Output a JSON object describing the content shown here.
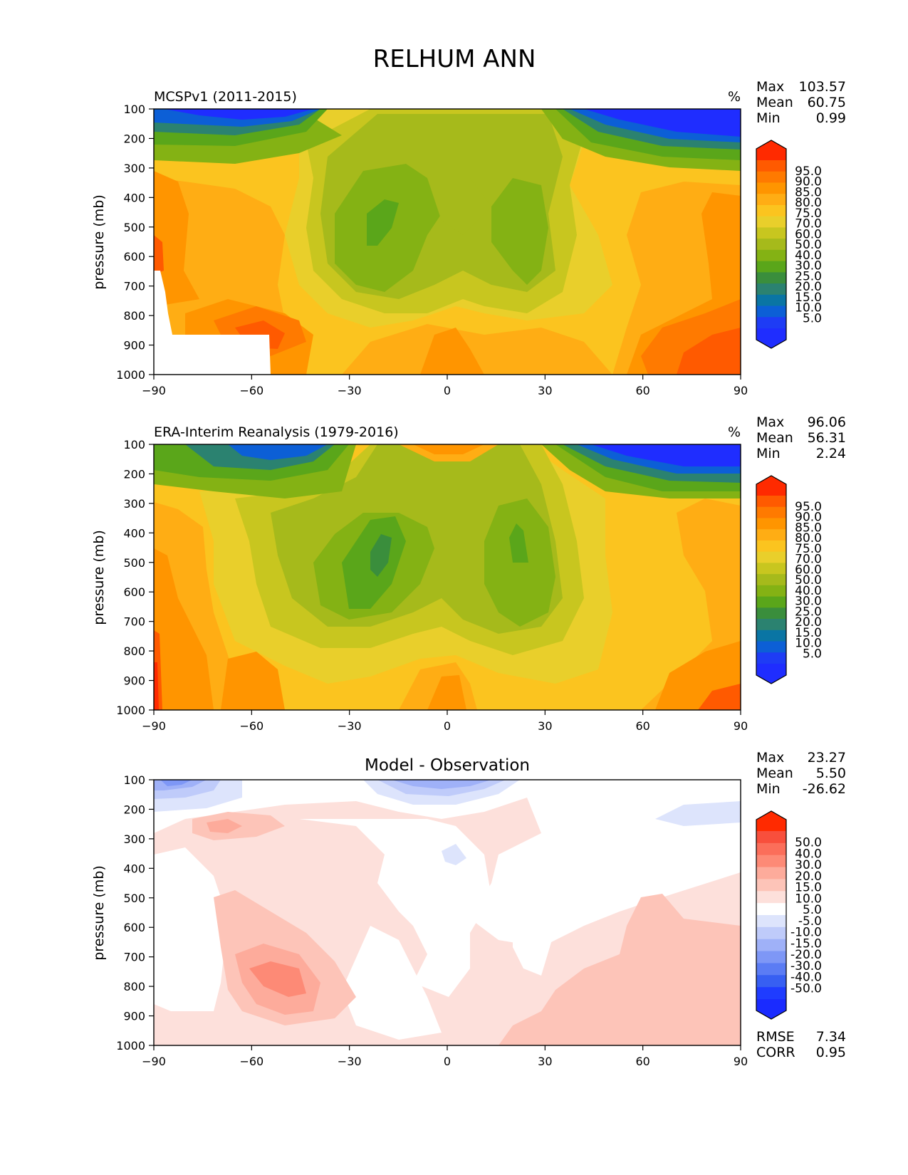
{
  "figure": {
    "title": "RELHUM ANN"
  },
  "chart_data": [
    {
      "type": "heatmap",
      "panel": "model",
      "title": "MCSPv1 (2011-2015)",
      "units": "%",
      "ylabel": "pressure (mb)",
      "xlabel": "",
      "xlim": [
        -90,
        90
      ],
      "ylim": [
        1000,
        100
      ],
      "xticks": [
        "−90",
        "−60",
        "−30",
        "0",
        "30",
        "60",
        "90"
      ],
      "yticks": [
        "100",
        "200",
        "300",
        "400",
        "500",
        "600",
        "700",
        "800",
        "900",
        "1000"
      ],
      "stats": [
        {
          "label": "Max",
          "value": "103.57"
        },
        {
          "label": "Mean",
          "value": "60.75"
        },
        {
          "label": "Min",
          "value": "0.99"
        }
      ],
      "colorbar_levels": [
        "95.0",
        "90.0",
        "85.0",
        "80.0",
        "75.0",
        "70.0",
        "60.0",
        "50.0",
        "40.0",
        "30.0",
        "25.0",
        "20.0",
        "15.0",
        "10.0",
        "5.0"
      ],
      "colorbar_colors": [
        "#ff2a00",
        "#ff5a00",
        "#ff7a00",
        "#ff9500",
        "#ffad14",
        "#fbc41f",
        "#e9cf2b",
        "#c8c61f",
        "#a6ba1b",
        "#84b214",
        "#5aa61a",
        "#3a8e3c",
        "#2b8270",
        "#0a75a4",
        "#0c5fd6",
        "#1e3cf5",
        "#1f2dff"
      ],
      "masked_region": "below-ground"
    },
    {
      "type": "heatmap",
      "panel": "observation",
      "title": "ERA-Interim Reanalysis (1979-2016)",
      "units": "%",
      "ylabel": "pressure (mb)",
      "xlabel": "",
      "xlim": [
        -90,
        90
      ],
      "ylim": [
        1000,
        100
      ],
      "xticks": [
        "−90",
        "−60",
        "−30",
        "0",
        "30",
        "60",
        "90"
      ],
      "yticks": [
        "100",
        "200",
        "300",
        "400",
        "500",
        "600",
        "700",
        "800",
        "900",
        "1000"
      ],
      "stats": [
        {
          "label": "Max",
          "value": "96.06"
        },
        {
          "label": "Mean",
          "value": "56.31"
        },
        {
          "label": "Min",
          "value": "2.24"
        }
      ],
      "colorbar_levels": [
        "95.0",
        "90.0",
        "85.0",
        "80.0",
        "75.0",
        "70.0",
        "60.0",
        "50.0",
        "40.0",
        "30.0",
        "25.0",
        "20.0",
        "15.0",
        "10.0",
        "5.0"
      ],
      "colorbar_colors": [
        "#ff2a00",
        "#ff5a00",
        "#ff7a00",
        "#ff9500",
        "#ffad14",
        "#fbc41f",
        "#e9cf2b",
        "#c8c61f",
        "#a6ba1b",
        "#84b214",
        "#5aa61a",
        "#3a8e3c",
        "#2b8270",
        "#0a75a4",
        "#0c5fd6",
        "#1e3cf5",
        "#1f2dff"
      ]
    },
    {
      "type": "heatmap",
      "panel": "difference",
      "title": "Model - Observation",
      "units": "",
      "ylabel": "pressure (mb)",
      "xlabel": "",
      "xlim": [
        -90,
        90
      ],
      "ylim": [
        1000,
        100
      ],
      "xticks": [
        "−90",
        "−60",
        "−30",
        "0",
        "30",
        "60",
        "90"
      ],
      "yticks": [
        "100",
        "200",
        "300",
        "400",
        "500",
        "600",
        "700",
        "800",
        "900",
        "1000"
      ],
      "stats": [
        {
          "label": "Max",
          "value": "23.27"
        },
        {
          "label": "Mean",
          "value": "5.50"
        },
        {
          "label": "Min",
          "value": "-26.62"
        }
      ],
      "extra_stats": [
        {
          "label": "RMSE",
          "value": "7.34"
        },
        {
          "label": "CORR",
          "value": "0.95"
        }
      ],
      "colorbar_levels": [
        "50.0",
        "40.0",
        "30.0",
        "20.0",
        "15.0",
        "10.0",
        "5.0",
        "-5.0",
        "-10.0",
        "-15.0",
        "-20.0",
        "-30.0",
        "-40.0",
        "-50.0"
      ],
      "colorbar_colors": [
        "#ff2a00",
        "#f84f3c",
        "#fb6e5a",
        "#fd8a76",
        "#fdab9b",
        "#fdc4b8",
        "#fde0db",
        "#ffffff",
        "#dde4fc",
        "#bfcbfa",
        "#9fb1f8",
        "#7e97f6",
        "#5b7cf4",
        "#375ff2",
        "#1f3cff",
        "#1a2bff"
      ]
    }
  ]
}
